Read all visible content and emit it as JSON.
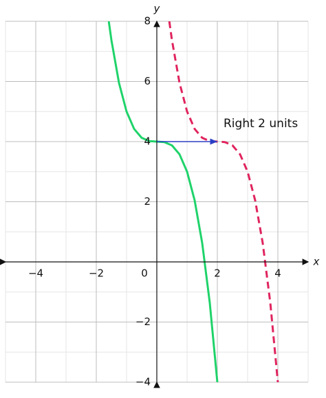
{
  "chart_data": {
    "type": "line",
    "x_label": "x",
    "y_label": "y",
    "xlim": [
      -5,
      5
    ],
    "ylim": [
      -4,
      8
    ],
    "xticks": [
      {
        "value": -4,
        "label": "−4"
      },
      {
        "value": -2,
        "label": "−2"
      },
      0,
      2,
      4
    ],
    "yticks": [
      {
        "value": -4,
        "label": "−4"
      },
      {
        "value": -2,
        "label": "−2"
      },
      2,
      4,
      6,
      8
    ],
    "minor_xticks": [
      -5,
      -4,
      -3,
      -2,
      -1,
      0,
      1,
      2,
      3,
      4,
      5
    ],
    "minor_yticks": [
      -4,
      -3,
      -2,
      -1,
      0,
      1,
      2,
      3,
      4,
      5,
      6,
      7,
      8
    ],
    "grid": true,
    "series": [
      {
        "color": "#1fd36a",
        "dash": false,
        "x": [
          -1.587,
          -1.5,
          -1.25,
          -1,
          -0.75,
          -0.5,
          -0.25,
          0,
          0.25,
          0.5,
          0.75,
          1,
          1.25,
          1.5,
          1.75,
          2
        ],
        "values": [
          8,
          7.375,
          5.953,
          5,
          4.422,
          4.125,
          4.016,
          4,
          3.984,
          3.875,
          3.578,
          3,
          2.047,
          0.625,
          -1.359,
          -4
        ]
      },
      {
        "color": "#e0245e",
        "dash": true,
        "x": [
          0.413,
          0.5,
          0.75,
          1,
          1.25,
          1.5,
          1.75,
          2,
          2.25,
          2.5,
          2.75,
          3,
          3.25,
          3.5,
          3.75,
          4
        ],
        "values": [
          8,
          7.375,
          5.953,
          5,
          4.422,
          4.125,
          4.016,
          4,
          3.984,
          3.875,
          3.578,
          3,
          2.047,
          0.625,
          -1.359,
          -4
        ]
      }
    ],
    "arrow": {
      "color": "#2b3fc4",
      "x": [
        0,
        2
      ],
      "y": [
        4,
        4
      ]
    },
    "annotation": {
      "text": "Right 2 units",
      "color": "#2b3fc4"
    }
  }
}
